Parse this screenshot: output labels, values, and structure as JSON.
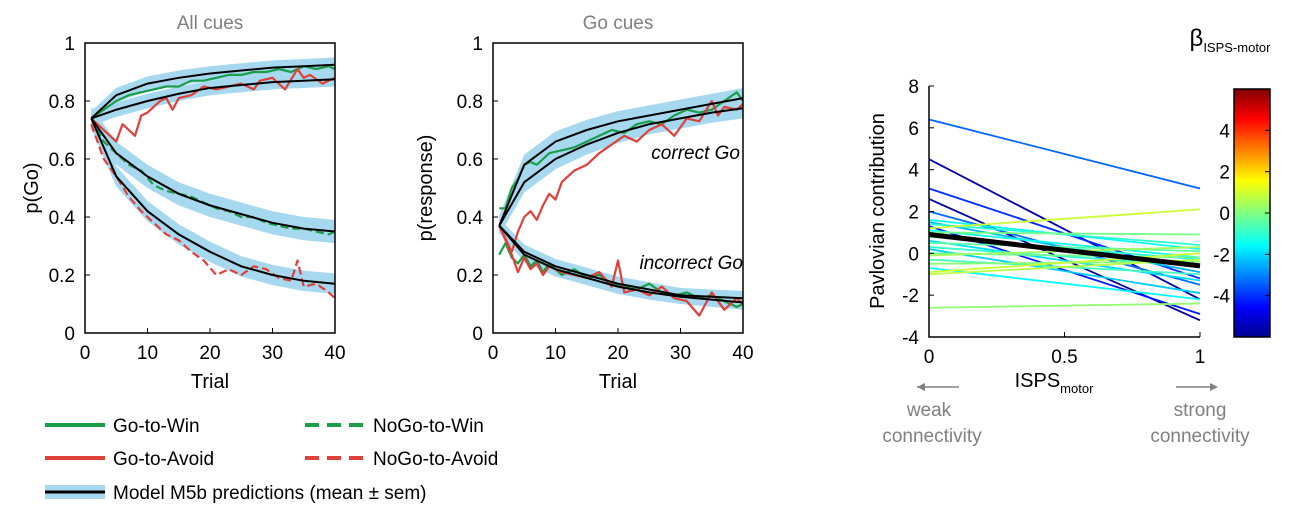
{
  "chart_data": [
    {
      "type": "line",
      "title": "All cues",
      "xlabel": "Trial",
      "ylabel": "p(Go)",
      "xlim": [
        0,
        40
      ],
      "ylim": [
        0,
        1
      ],
      "xticks": [
        0,
        10,
        20,
        30,
        40
      ],
      "yticks": [
        0,
        0.2,
        0.4,
        0.6,
        0.8,
        1
      ],
      "xtick_labels": [
        "0",
        "10",
        "20",
        "30",
        "40"
      ],
      "ytick_labels": [
        "0",
        "0.2",
        "0.4",
        "0.6",
        "0.8",
        "1"
      ],
      "series": [
        {
          "name": "Go-to-Win",
          "style": "solid",
          "color": "#1a9e4a",
          "x": [
            1,
            3,
            5,
            7,
            9,
            11,
            13,
            15,
            17,
            19,
            21,
            23,
            25,
            27,
            29,
            31,
            33,
            35,
            37,
            39,
            40
          ],
          "y": [
            0.74,
            0.77,
            0.8,
            0.82,
            0.83,
            0.84,
            0.85,
            0.85,
            0.87,
            0.87,
            0.88,
            0.89,
            0.89,
            0.9,
            0.9,
            0.91,
            0.9,
            0.92,
            0.91,
            0.92,
            0.91
          ]
        },
        {
          "name": "Go-to-Avoid",
          "style": "solid",
          "color": "#e0403a",
          "x": [
            1,
            3,
            5,
            6,
            8,
            9,
            10,
            11,
            12,
            13,
            14,
            15,
            17,
            19,
            21,
            23,
            25,
            27,
            28,
            30,
            32,
            34,
            35,
            36,
            38,
            40
          ],
          "y": [
            0.74,
            0.7,
            0.66,
            0.72,
            0.68,
            0.75,
            0.76,
            0.78,
            0.8,
            0.81,
            0.77,
            0.81,
            0.82,
            0.85,
            0.84,
            0.85,
            0.86,
            0.84,
            0.87,
            0.88,
            0.84,
            0.91,
            0.88,
            0.89,
            0.86,
            0.88
          ]
        },
        {
          "name": "NoGo-to-Win",
          "style": "dashed",
          "color": "#1a9e4a",
          "x": [
            1,
            3,
            5,
            7,
            9,
            11,
            13,
            15,
            17,
            19,
            21,
            23,
            25,
            27,
            29,
            31,
            33,
            35,
            37,
            39,
            40
          ],
          "y": [
            0.74,
            0.66,
            0.62,
            0.58,
            0.56,
            0.51,
            0.49,
            0.48,
            0.47,
            0.45,
            0.43,
            0.42,
            0.4,
            0.4,
            0.38,
            0.37,
            0.36,
            0.36,
            0.35,
            0.34,
            0.35
          ]
        },
        {
          "name": "NoGo-to-Avoid",
          "style": "dashed",
          "color": "#e0403a",
          "x": [
            1,
            3,
            5,
            7,
            9,
            11,
            13,
            15,
            17,
            19,
            21,
            23,
            25,
            27,
            29,
            31,
            33,
            34,
            35,
            37,
            39,
            40
          ],
          "y": [
            0.72,
            0.6,
            0.54,
            0.47,
            0.42,
            0.38,
            0.34,
            0.32,
            0.28,
            0.25,
            0.2,
            0.22,
            0.2,
            0.23,
            0.22,
            0.19,
            0.18,
            0.25,
            0.16,
            0.17,
            0.14,
            0.12
          ]
        }
      ],
      "model": [
        {
          "x": [
            1,
            5,
            10,
            15,
            20,
            25,
            30,
            35,
            40
          ],
          "y": [
            0.74,
            0.82,
            0.86,
            0.88,
            0.895,
            0.905,
            0.915,
            0.92,
            0.925
          ],
          "sem": 0.025
        },
        {
          "x": [
            1,
            5,
            10,
            15,
            20,
            25,
            30,
            35,
            40
          ],
          "y": [
            0.74,
            0.77,
            0.8,
            0.825,
            0.845,
            0.855,
            0.865,
            0.87,
            0.875
          ],
          "sem": 0.025
        },
        {
          "x": [
            1,
            5,
            10,
            15,
            20,
            25,
            30,
            35,
            40
          ],
          "y": [
            0.74,
            0.62,
            0.54,
            0.48,
            0.44,
            0.41,
            0.38,
            0.36,
            0.35
          ],
          "sem": 0.04
        },
        {
          "x": [
            1,
            5,
            10,
            15,
            20,
            25,
            30,
            35,
            40
          ],
          "y": [
            0.74,
            0.54,
            0.42,
            0.34,
            0.28,
            0.23,
            0.2,
            0.18,
            0.17
          ],
          "sem": 0.035
        }
      ],
      "model_color": "#000000",
      "sem_color": "#a6d8f0"
    },
    {
      "type": "line",
      "title": "Go cues",
      "xlabel": "Trial",
      "ylabel": "p(response)",
      "xlim": [
        0,
        40
      ],
      "ylim": [
        0,
        1
      ],
      "xticks": [
        0,
        10,
        20,
        30,
        40
      ],
      "yticks": [
        0,
        0.2,
        0.4,
        0.6,
        0.8,
        1
      ],
      "xtick_labels": [
        "0",
        "10",
        "20",
        "30",
        "40"
      ],
      "ytick_labels": [
        "0",
        "0.2",
        "0.4",
        "0.6",
        "0.8",
        "1"
      ],
      "annotations": [
        {
          "text": "correct Go",
          "x": 40,
          "y": 0.63
        },
        {
          "text": "incorrect Go",
          "x": 40,
          "y": 0.27
        }
      ],
      "series": [
        {
          "name": "Go-to-Win correct",
          "style": "solid",
          "color": "#1a9e4a",
          "x": [
            1,
            2,
            3,
            4,
            5,
            6,
            7,
            8,
            9,
            11,
            13,
            15,
            17,
            19,
            21,
            23,
            25,
            27,
            29,
            31,
            33,
            35,
            37,
            39,
            40
          ],
          "y": [
            0.43,
            0.43,
            0.5,
            0.53,
            0.58,
            0.59,
            0.58,
            0.6,
            0.62,
            0.63,
            0.64,
            0.66,
            0.68,
            0.7,
            0.69,
            0.72,
            0.73,
            0.72,
            0.75,
            0.77,
            0.76,
            0.77,
            0.8,
            0.83,
            0.8
          ]
        },
        {
          "name": "Go-to-Avoid correct",
          "style": "solid",
          "color": "#e0403a",
          "x": [
            1,
            3,
            4,
            5,
            6,
            7,
            8,
            9,
            10,
            11,
            13,
            15,
            17,
            19,
            21,
            23,
            25,
            27,
            29,
            31,
            33,
            35,
            36,
            37,
            39,
            40
          ],
          "y": [
            0.37,
            0.28,
            0.35,
            0.4,
            0.42,
            0.39,
            0.44,
            0.48,
            0.46,
            0.52,
            0.56,
            0.58,
            0.62,
            0.65,
            0.68,
            0.66,
            0.7,
            0.72,
            0.68,
            0.74,
            0.73,
            0.8,
            0.75,
            0.78,
            0.77,
            0.79
          ]
        },
        {
          "name": "Go-to-Win incorrect",
          "style": "solid",
          "color": "#1a9e4a",
          "x": [
            1,
            2,
            3,
            4,
            5,
            6,
            7,
            8,
            9,
            11,
            13,
            15,
            17,
            19,
            21,
            23,
            25,
            27,
            29,
            31,
            33,
            35,
            37,
            39,
            40
          ],
          "y": [
            0.27,
            0.31,
            0.26,
            0.24,
            0.27,
            0.23,
            0.25,
            0.21,
            0.24,
            0.2,
            0.22,
            0.19,
            0.2,
            0.17,
            0.16,
            0.15,
            0.17,
            0.14,
            0.13,
            0.14,
            0.12,
            0.13,
            0.11,
            0.09,
            0.1
          ]
        },
        {
          "name": "Go-to-Avoid incorrect",
          "style": "solid",
          "color": "#e0403a",
          "x": [
            1,
            3,
            4,
            5,
            6,
            7,
            8,
            9,
            11,
            13,
            15,
            17,
            19,
            20,
            21,
            23,
            25,
            27,
            29,
            31,
            33,
            35,
            37,
            39,
            40
          ],
          "y": [
            0.37,
            0.27,
            0.21,
            0.26,
            0.22,
            0.24,
            0.2,
            0.23,
            0.21,
            0.2,
            0.19,
            0.21,
            0.16,
            0.25,
            0.14,
            0.15,
            0.13,
            0.16,
            0.12,
            0.11,
            0.06,
            0.14,
            0.08,
            0.12,
            0.1
          ]
        }
      ],
      "model": [
        {
          "x": [
            1,
            5,
            10,
            15,
            20,
            25,
            30,
            35,
            40
          ],
          "y": [
            0.37,
            0.58,
            0.66,
            0.7,
            0.73,
            0.75,
            0.77,
            0.79,
            0.81
          ],
          "sem": 0.035
        },
        {
          "x": [
            1,
            5,
            10,
            15,
            20,
            25,
            30,
            35,
            40
          ],
          "y": [
            0.37,
            0.52,
            0.6,
            0.65,
            0.69,
            0.72,
            0.74,
            0.76,
            0.775
          ],
          "sem": 0.035
        },
        {
          "x": [
            1,
            5,
            10,
            15,
            20,
            25,
            30,
            35,
            40
          ],
          "y": [
            0.37,
            0.28,
            0.23,
            0.2,
            0.17,
            0.15,
            0.13,
            0.125,
            0.12
          ],
          "sem": 0.025
        },
        {
          "x": [
            1,
            5,
            10,
            15,
            20,
            25,
            30,
            35,
            40
          ],
          "y": [
            0.37,
            0.27,
            0.22,
            0.19,
            0.16,
            0.14,
            0.125,
            0.115,
            0.105
          ],
          "sem": 0.025
        }
      ],
      "model_color": "#000000",
      "sem_color": "#a6d8f0"
    },
    {
      "type": "line",
      "title": "",
      "xlabel": "ISPS",
      "xlabel_sub": "motor",
      "ylabel": "Pavlovian contribution",
      "xlim": [
        0,
        1
      ],
      "ylim": [
        -4,
        8
      ],
      "xticks": [
        0,
        0.5,
        1
      ],
      "yticks": [
        -4,
        -2,
        0,
        2,
        4,
        6,
        8
      ],
      "xtick_labels": [
        "0",
        "0.5",
        "1"
      ],
      "ytick_labels": [
        "-4",
        "-2",
        "0",
        "2",
        "4",
        "6",
        "8"
      ],
      "xaxis_annotations": {
        "left": [
          "weak",
          "connectivity"
        ],
        "right": [
          "strong",
          "connectivity"
        ]
      },
      "colorbar": {
        "label": "β",
        "label_sub": "ISPS-motor",
        "range": [
          -6,
          6
        ],
        "ticks": [
          4,
          2,
          0,
          -2,
          -4
        ],
        "tick_labels": [
          "4",
          "2",
          "0",
          "-2",
          "-4"
        ]
      },
      "lines": [
        {
          "y0": 6.4,
          "y1": 3.1,
          "beta": -3.3
        },
        {
          "y0": 4.5,
          "y1": -2.2,
          "beta": -5.5
        },
        {
          "y0": 3.1,
          "y1": -1.2,
          "beta": -4.0
        },
        {
          "y0": 2.6,
          "y1": -3.2,
          "beta": -5.7
        },
        {
          "y0": 2.0,
          "y1": -1.5,
          "beta": -3.2
        },
        {
          "y0": 1.6,
          "y1": 0.2,
          "beta": -1.4
        },
        {
          "y0": 1.5,
          "y1": -0.9,
          "beta": -2.4
        },
        {
          "y0": 1.4,
          "y1": 0.4,
          "beta": -1.0
        },
        {
          "y0": 1.3,
          "y1": -2.9,
          "beta": -4.2
        },
        {
          "y0": 1.2,
          "y1": 2.1,
          "beta": 0.9
        },
        {
          "y0": 1.1,
          "y1": -0.2,
          "beta": -1.3
        },
        {
          "y0": 1.0,
          "y1": 0.9,
          "beta": -0.1
        },
        {
          "y0": 0.9,
          "y1": -0.6,
          "beta": -1.5
        },
        {
          "y0": 0.8,
          "y1": -0.3,
          "beta": -1.1
        },
        {
          "y0": 0.6,
          "y1": -1.3,
          "beta": -1.9
        },
        {
          "y0": 0.5,
          "y1": 0.1,
          "beta": -0.4
        },
        {
          "y0": 0.3,
          "y1": -0.6,
          "beta": -0.9
        },
        {
          "y0": 0.2,
          "y1": -1.9,
          "beta": -2.1
        },
        {
          "y0": 0.0,
          "y1": -0.2,
          "beta": -0.2
        },
        {
          "y0": -0.1,
          "y1": 0.3,
          "beta": 0.4
        },
        {
          "y0": -0.3,
          "y1": -1.0,
          "beta": -0.7
        },
        {
          "y0": -0.5,
          "y1": -0.4,
          "beta": 0.1
        },
        {
          "y0": -0.7,
          "y1": -2.2,
          "beta": -1.5
        },
        {
          "y0": -0.9,
          "y1": 0.0,
          "beta": 0.9
        },
        {
          "y0": -1.0,
          "y1": -0.3,
          "beta": 0.7
        },
        {
          "y0": -2.6,
          "y1": -2.4,
          "beta": 0.2
        }
      ],
      "mean_line": {
        "y0": 0.9,
        "y1": -0.6
      }
    }
  ],
  "legend": {
    "items": [
      {
        "label": "Go-to-Win",
        "color": "#1a9e4a",
        "style": "solid"
      },
      {
        "label": "NoGo-to-Win",
        "color": "#1a9e4a",
        "style": "dashed"
      },
      {
        "label": "Go-to-Avoid",
        "color": "#e0403a",
        "style": "solid"
      },
      {
        "label": "NoGo-to-Avoid",
        "color": "#e0403a",
        "style": "dashed"
      }
    ],
    "model_label": "Model M5b predictions (mean ± sem)"
  }
}
